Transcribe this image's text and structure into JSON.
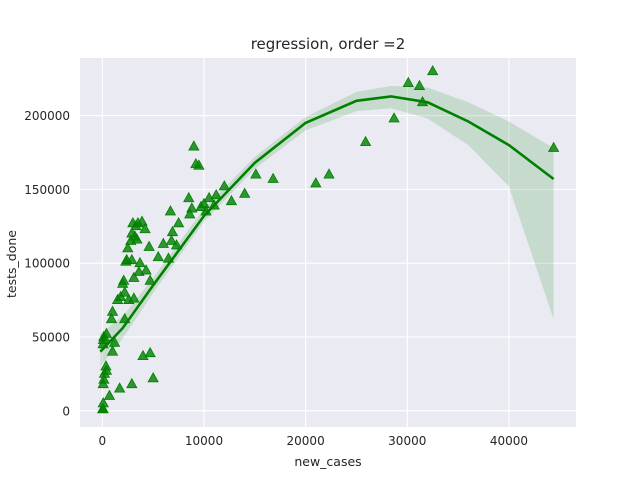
{
  "chart_data": {
    "type": "scatter",
    "title": "regression, order =2",
    "xlabel": "new_cases",
    "ylabel": "tests_done",
    "xlim": [
      -2200,
      46600
    ],
    "ylim": [
      -11000,
      239000
    ],
    "grid": true,
    "x_ticks": [
      0,
      10000,
      20000,
      30000,
      40000
    ],
    "y_ticks": [
      0,
      50000,
      100000,
      150000,
      200000
    ],
    "x_tick_labels": [
      "0",
      "10000",
      "20000",
      "30000",
      "40000"
    ],
    "y_tick_labels": [
      "0",
      "50000",
      "100000",
      "150000",
      "200000"
    ],
    "colors": {
      "background": "#eaeaf2",
      "grid": "#ffffff",
      "points": "#008000",
      "fit_line": "#008000",
      "ci_band": "#008000"
    },
    "marker": "triangle",
    "points": [
      {
        "x": 40,
        "y": 1000
      },
      {
        "x": 60,
        "y": 1200
      },
      {
        "x": 90,
        "y": 5000
      },
      {
        "x": 80,
        "y": 18000
      },
      {
        "x": 150,
        "y": 21000
      },
      {
        "x": 200,
        "y": 25000
      },
      {
        "x": 350,
        "y": 30000
      },
      {
        "x": 400,
        "y": 27000
      },
      {
        "x": 70,
        "y": 45000
      },
      {
        "x": 100,
        "y": 48000
      },
      {
        "x": 150,
        "y": 50000
      },
      {
        "x": 400,
        "y": 52000
      },
      {
        "x": 700,
        "y": 10000
      },
      {
        "x": 900,
        "y": 62000
      },
      {
        "x": 1000,
        "y": 67000
      },
      {
        "x": 1000,
        "y": 40000
      },
      {
        "x": 1200,
        "y": 46000
      },
      {
        "x": 1500,
        "y": 75000
      },
      {
        "x": 1700,
        "y": 15000
      },
      {
        "x": 1800,
        "y": 77000
      },
      {
        "x": 2000,
        "y": 86000
      },
      {
        "x": 2100,
        "y": 88000
      },
      {
        "x": 2200,
        "y": 80000
      },
      {
        "x": 2300,
        "y": 101000
      },
      {
        "x": 2400,
        "y": 102000
      },
      {
        "x": 2500,
        "y": 110000
      },
      {
        "x": 2200,
        "y": 62000
      },
      {
        "x": 2600,
        "y": 75000
      },
      {
        "x": 2800,
        "y": 115000
      },
      {
        "x": 2900,
        "y": 120000
      },
      {
        "x": 3000,
        "y": 127000
      },
      {
        "x": 2900,
        "y": 102000
      },
      {
        "x": 3100,
        "y": 90000
      },
      {
        "x": 3100,
        "y": 76000
      },
      {
        "x": 3200,
        "y": 118000
      },
      {
        "x": 3300,
        "y": 125000
      },
      {
        "x": 3400,
        "y": 116000
      },
      {
        "x": 3500,
        "y": 127000
      },
      {
        "x": 3600,
        "y": 94000
      },
      {
        "x": 3700,
        "y": 100000
      },
      {
        "x": 3900,
        "y": 128000
      },
      {
        "x": 4000,
        "y": 37000
      },
      {
        "x": 4200,
        "y": 123000
      },
      {
        "x": 4300,
        "y": 95000
      },
      {
        "x": 4600,
        "y": 111000
      },
      {
        "x": 4700,
        "y": 39000
      },
      {
        "x": 4700,
        "y": 88000
      },
      {
        "x": 5000,
        "y": 22000
      },
      {
        "x": 2900,
        "y": 18000
      },
      {
        "x": 5500,
        "y": 104000
      },
      {
        "x": 6000,
        "y": 113000
      },
      {
        "x": 6500,
        "y": 103000
      },
      {
        "x": 6700,
        "y": 135000
      },
      {
        "x": 6800,
        "y": 115000
      },
      {
        "x": 6900,
        "y": 121000
      },
      {
        "x": 7300,
        "y": 112000
      },
      {
        "x": 7500,
        "y": 127000
      },
      {
        "x": 8500,
        "y": 144000
      },
      {
        "x": 8600,
        "y": 133000
      },
      {
        "x": 8800,
        "y": 137000
      },
      {
        "x": 9000,
        "y": 179000
      },
      {
        "x": 9200,
        "y": 167000
      },
      {
        "x": 9500,
        "y": 166000
      },
      {
        "x": 9700,
        "y": 138000
      },
      {
        "x": 10000,
        "y": 140000
      },
      {
        "x": 10200,
        "y": 135000
      },
      {
        "x": 10500,
        "y": 144000
      },
      {
        "x": 11000,
        "y": 139000
      },
      {
        "x": 11200,
        "y": 146000
      },
      {
        "x": 12000,
        "y": 152000
      },
      {
        "x": 12700,
        "y": 142000
      },
      {
        "x": 14000,
        "y": 147000
      },
      {
        "x": 15100,
        "y": 160000
      },
      {
        "x": 16800,
        "y": 157000
      },
      {
        "x": 21000,
        "y": 154000
      },
      {
        "x": 22300,
        "y": 160000
      },
      {
        "x": 25900,
        "y": 182000
      },
      {
        "x": 28700,
        "y": 198000
      },
      {
        "x": 30100,
        "y": 222000
      },
      {
        "x": 31200,
        "y": 220000
      },
      {
        "x": 31500,
        "y": 209000
      },
      {
        "x": 32500,
        "y": 230000
      },
      {
        "x": 44400,
        "y": 178000
      }
    ],
    "fit": {
      "order": 2,
      "x": [
        -200,
        2000,
        5000,
        10000,
        15000,
        20000,
        25000,
        28400,
        32000,
        36000,
        40000,
        44400
      ],
      "y": [
        40000,
        56000,
        85000,
        132000,
        168000,
        195000,
        210000,
        213000,
        209000,
        196000,
        180000,
        157000
      ],
      "ci_upper": [
        52000,
        64000,
        90000,
        137000,
        172000,
        199000,
        216000,
        220000,
        219000,
        209000,
        196000,
        178000
      ],
      "ci_lower": [
        30000,
        49000,
        80000,
        128000,
        164000,
        190000,
        203000,
        205000,
        198000,
        180000,
        152000,
        62000
      ]
    }
  }
}
